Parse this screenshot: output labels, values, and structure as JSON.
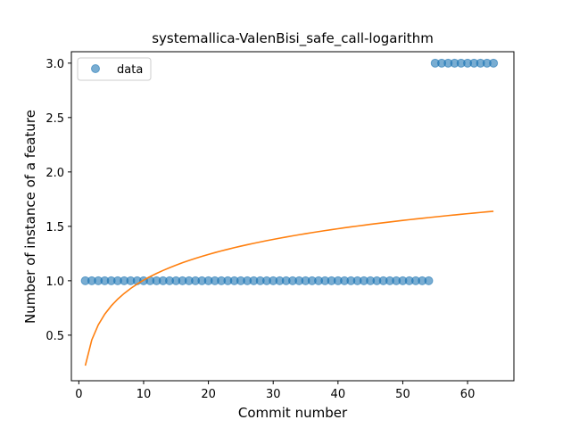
{
  "chart_data": {
    "type": "scatter",
    "title": "systemallica-ValenBisi_safe_call-logarithm",
    "xlabel": "Commit number",
    "ylabel": "Number of instance of a feature",
    "xlim": [
      -1.15,
      67.15
    ],
    "ylim": [
      0.081,
      3.105
    ],
    "xticks": [
      0,
      10,
      20,
      30,
      40,
      50,
      60
    ],
    "yticks": [
      0.5,
      1.0,
      1.5,
      2.0,
      2.5,
      3.0
    ],
    "ytick_labels": [
      "0.5",
      "1.0",
      "1.5",
      "2.0",
      "2.5",
      "3.0"
    ],
    "legend": {
      "position": "upper-left",
      "entries": [
        "data"
      ]
    },
    "colors": {
      "scatter": "#1f77b4",
      "fit": "#ff7f0e"
    },
    "series": [
      {
        "name": "data",
        "kind": "scatter",
        "segments": [
          {
            "x_start": 1,
            "x_end": 54,
            "y": 1.0
          },
          {
            "x_start": 55,
            "x_end": 64,
            "y": 3.0
          }
        ]
      },
      {
        "kind": "line",
        "model": "log",
        "a": 0.2196,
        "b": 0.3412,
        "x_range": [
          1,
          64
        ]
      }
    ]
  }
}
